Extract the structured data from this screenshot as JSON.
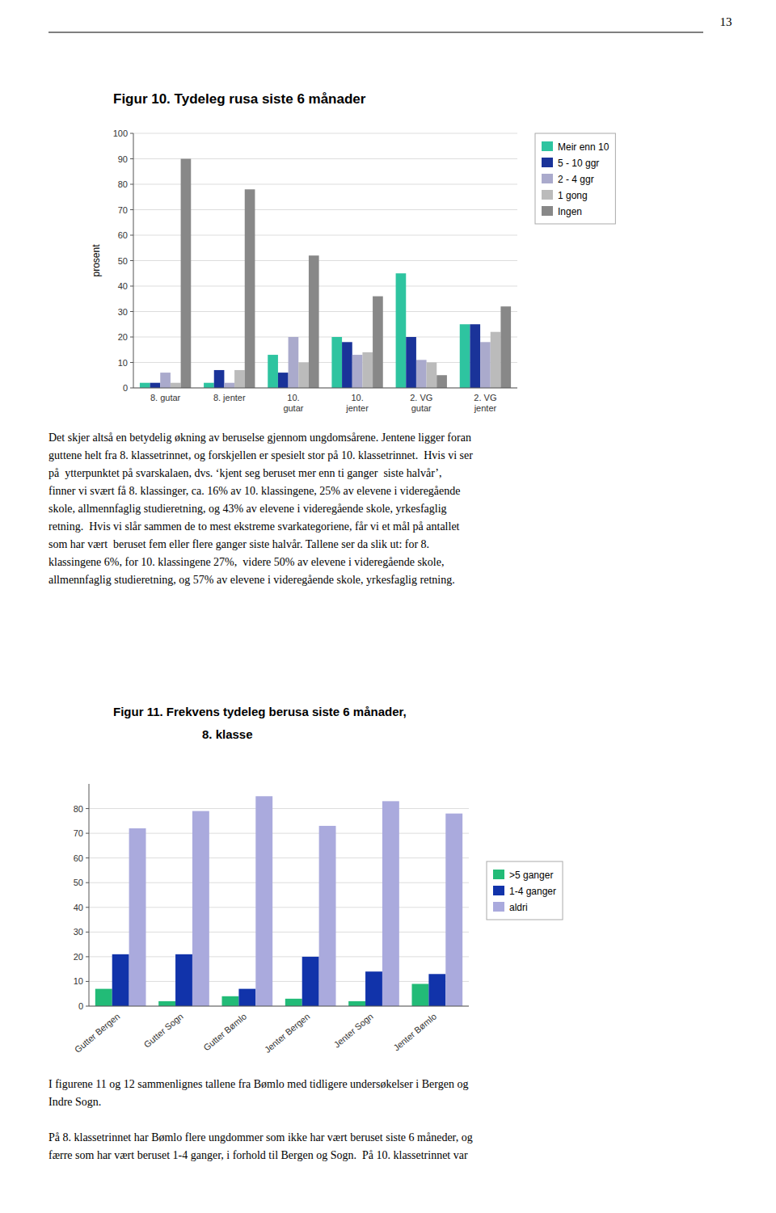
{
  "page_number": "13",
  "chart_data": [
    {
      "type": "bar",
      "title": "Figur 10. Tydeleg rusa siste 6 månader",
      "y_label": "prosent",
      "categories": [
        "8. gutar",
        "8. jenter",
        "10.\ngutar",
        "10.\njenter",
        "2. VG\ngutar",
        "2. VG\njenter"
      ],
      "series": [
        {
          "name": "Meir enn 10",
          "color": "#2EC4A0",
          "values": [
            2,
            2,
            13,
            20,
            45,
            25
          ]
        },
        {
          "name": "5 - 10 ggr",
          "color": "#1A3399",
          "values": [
            2,
            7,
            6,
            18,
            20,
            25
          ]
        },
        {
          "name": "2 - 4 ggr",
          "color": "#AAAACC",
          "values": [
            6,
            2,
            20,
            13,
            11,
            18
          ]
        },
        {
          "name": "1 gong",
          "color": "#BBBBBB",
          "values": [
            2,
            7,
            10,
            14,
            10,
            22
          ]
        },
        {
          "name": "Ingen",
          "color": "#888888",
          "values": [
            90,
            78,
            52,
            36,
            5,
            32
          ]
        }
      ],
      "ylim": [
        0,
        100
      ],
      "yticks": [
        0,
        10,
        20,
        30,
        40,
        50,
        60,
        70,
        80,
        90,
        100
      ],
      "grid": true,
      "legend": "right"
    },
    {
      "type": "bar",
      "title": "Figur 11. Frekvens tydeleg berusa siste 6 månader,",
      "subtitle": "8. klasse",
      "categories": [
        "Gutter Bergen",
        "Gutter Sogn",
        "Gutter Bømlo",
        "Jenter Bergen",
        "Jenter Sogn",
        "Jenter Bømlo"
      ],
      "series": [
        {
          "name": ">5 ganger",
          "color": "#22BB77",
          "values": [
            7,
            2,
            4,
            3,
            2,
            9
          ]
        },
        {
          "name": "1-4 ganger",
          "color": "#1133AA",
          "values": [
            21,
            21,
            7,
            20,
            14,
            13
          ]
        },
        {
          "name": "aldri",
          "color": "#AAAADD",
          "values": [
            72,
            79,
            85,
            73,
            83,
            78
          ]
        }
      ],
      "ylim": [
        0,
        90
      ],
      "yticks": [
        0,
        10,
        20,
        30,
        40,
        50,
        60,
        70,
        80
      ],
      "grid": true,
      "legend": "right"
    }
  ],
  "text1_lines": [
    "Det skjer altså en betydelig økning av beruselse gjennom ungdomsårene. Jentene ligger foran",
    "guttene helt fra 8. klassetrinnet, og forskjellen er spesielt stor på 10. klassetrinnet.  Hvis vi ser",
    "på  ytterpunktet på svarskalaen, dvs. ‘kjent seg beruset mer enn ti ganger  siste halvår’,",
    "finner vi svært få 8. klassinger, ca. 16% av 10. klassingene, 25% av elevene i videregående",
    "skole, allmennfaglig studieretning, og 43% av elevene i videregående skole, yrkesfaglig",
    "retning.  Hvis vi slår sammen de to mest ekstreme svarkategoriene, får vi et mål på antallet",
    "som har vært  beruset fem eller flere ganger siste halvår. Tallene ser da slik ut: for 8.",
    "klassingene 6%, for 10. klassingene 27%,  videre 50% av elevene i videregående skole,",
    "allmennfaglig studieretning, og 57% av elevene i videregående skole, yrkesfaglig retning."
  ],
  "text2_lines": [
    "I figurene 11 og 12 sammenlignes tallene fra Bømlo med tidligere undersøkelser i Bergen og",
    "Indre Sogn."
  ],
  "text3_lines": [
    "På 8. klassetrinnet har Bømlo flere ungdommer som ikke har vært beruset siste 6 måneder, og",
    "færre som har vært beruset 1-4 ganger, i forhold til Bergen og Sogn.  På 10. klassetrinnet var"
  ]
}
